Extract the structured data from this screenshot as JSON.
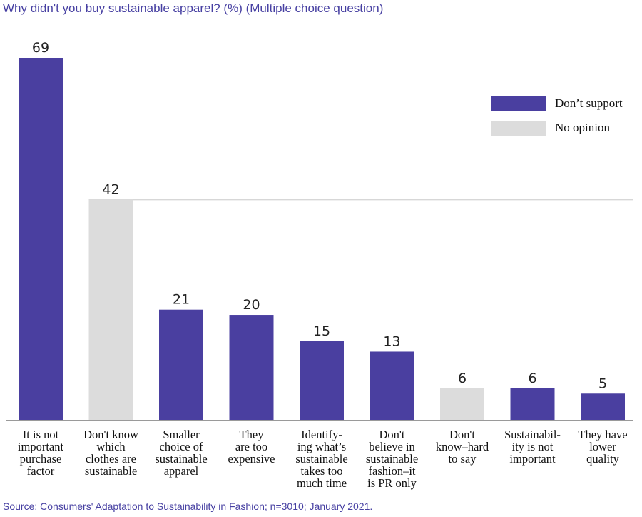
{
  "chart_data": {
    "type": "bar",
    "title": "Why didn't you buy sustainable apparel? (%) (Multiple choice question)",
    "categories": [
      [
        "It is not",
        "important",
        "purchase",
        "factor"
      ],
      [
        "Don't know",
        "which",
        "clothes are",
        "sustainable"
      ],
      [
        "Smaller",
        "choice of",
        "sustainable",
        "apparel"
      ],
      [
        "They",
        "are too",
        "expensive"
      ],
      [
        "Identify-",
        "ing what’s",
        "sustainable",
        "takes too",
        "much time"
      ],
      [
        "Don't",
        "believe in",
        "sustainable",
        "fashion–it",
        "is PR only"
      ],
      [
        "Don't",
        "know–hard",
        "to say"
      ],
      [
        "Sustainabil-",
        "ity is not",
        "important"
      ],
      [
        "They have",
        "lower",
        "quality"
      ]
    ],
    "values": [
      69,
      42,
      21,
      20,
      15,
      13,
      6,
      6,
      5
    ],
    "series_group": [
      "Don’t support",
      "No opinion",
      "Don’t support",
      "Don’t support",
      "Don’t support",
      "Don’t support",
      "No opinion",
      "Don’t support",
      "Don’t support"
    ],
    "legend": {
      "placement": "top-right",
      "items": [
        {
          "name": "Don’t support",
          "color": "#4a3fa0"
        },
        {
          "name": "No opinion",
          "color": "#dcdcdc"
        }
      ]
    },
    "ylim": [
      0,
      69
    ],
    "grid": false,
    "xlabel": "",
    "ylabel": "",
    "source": "Source: Consumers' Adaptation to Sustainability in Fashion; n=3010; January 2021."
  }
}
